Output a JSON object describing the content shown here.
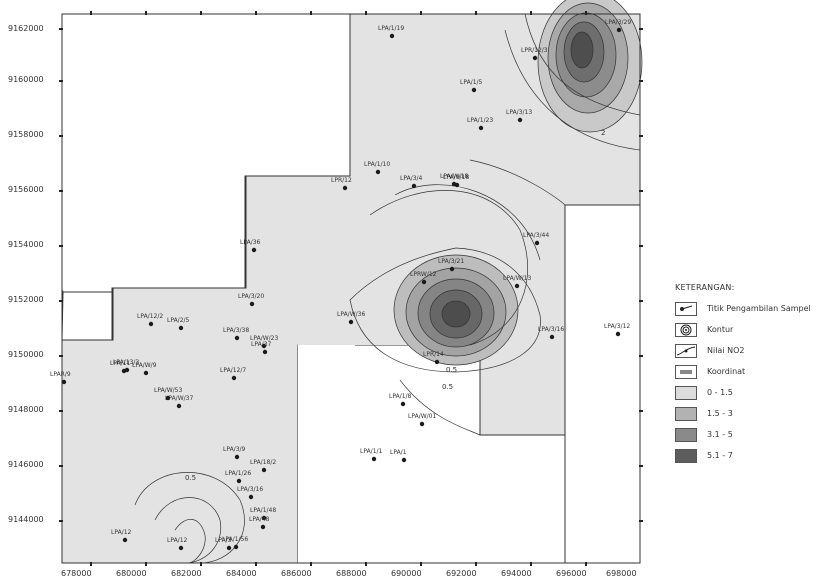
{
  "axes": {
    "y_ticks": [
      "9162000",
      "9160000",
      "9158000",
      "9156000",
      "9154000",
      "9152000",
      "9150000",
      "9148000",
      "9146000",
      "9144000"
    ],
    "x_ticks": [
      "678000",
      "680000",
      "682000",
      "684000",
      "686000",
      "688000",
      "690000",
      "692000",
      "694000",
      "696000",
      "698000"
    ]
  },
  "points": [
    {
      "label": "LPA/1/19"
    },
    {
      "label": "LPR/12"
    },
    {
      "label": "LPAR/9"
    },
    {
      "label": "LPA/3/29"
    },
    {
      "label": "LPA/1/5"
    },
    {
      "label": "LPR/12/3"
    },
    {
      "label": "LPA/1/23"
    },
    {
      "label": "LPA/9/18"
    },
    {
      "label": "LPA/3/21"
    },
    {
      "label": "LPA/1/10"
    },
    {
      "label": "LPA/3/12"
    },
    {
      "label": "LPA/3/16"
    },
    {
      "label": "LPA/1/8"
    },
    {
      "label": "LPA/1/48"
    },
    {
      "label": "LPRW/12"
    },
    {
      "label": "LPR/14"
    },
    {
      "label": "LPA/3/16"
    },
    {
      "label": "LPA/W/01"
    },
    {
      "label": "LPA/3/20"
    },
    {
      "label": "LPA/3/38"
    },
    {
      "label": "LPA/3/44"
    },
    {
      "label": "LPA/W/36"
    },
    {
      "label": "LPA/W/13"
    },
    {
      "label": "LPA/W/18"
    },
    {
      "label": "LPA/W/23"
    },
    {
      "label": "LPA/W/37"
    },
    {
      "label": "LPA/W/9"
    },
    {
      "label": "LPA/W/53"
    },
    {
      "label": "LPA/13/3"
    },
    {
      "label": "LPA/12/7"
    },
    {
      "label": "LPA/3/4"
    },
    {
      "label": "LPA/1/1"
    },
    {
      "label": "LPA/1/26"
    },
    {
      "label": "LPA/3/9"
    },
    {
      "label": "LPA/12"
    },
    {
      "label": "LPA/1/56"
    },
    {
      "label": "LPA/48"
    },
    {
      "label": "LPA/1"
    },
    {
      "label": "LPA/3/13"
    },
    {
      "label": "LPA/36"
    },
    {
      "label": "LPA/12"
    },
    {
      "label": "LPA/3"
    },
    {
      "label": "LPA/37"
    },
    {
      "label": "LPA/12/2"
    },
    {
      "label": "LPA/11"
    },
    {
      "label": "LPA/18/2"
    },
    {
      "label": "LPA/2/5"
    }
  ],
  "contour_labels": [
    "2",
    "0.5",
    "0.5",
    "0.5"
  ],
  "legend": {
    "title": "KETERANGAN:",
    "items": [
      {
        "label": "Titik Pengambilan Sampel",
        "symbol": "sample-point"
      },
      {
        "label": "Kontur",
        "symbol": "contour"
      },
      {
        "label": "Nilai NO2",
        "symbol": "no2-value"
      },
      {
        "label": "Koordinat",
        "symbol": "coordinate"
      },
      {
        "label": "0 - 1.5",
        "color": "#dcdcdc"
      },
      {
        "label": "1.5 - 3",
        "color": "#b2b2b2"
      },
      {
        "label": "3.1 - 5",
        "color": "#8a8a8a"
      },
      {
        "label": "5.1 - 7",
        "color": "#5d5d5d"
      }
    ]
  }
}
